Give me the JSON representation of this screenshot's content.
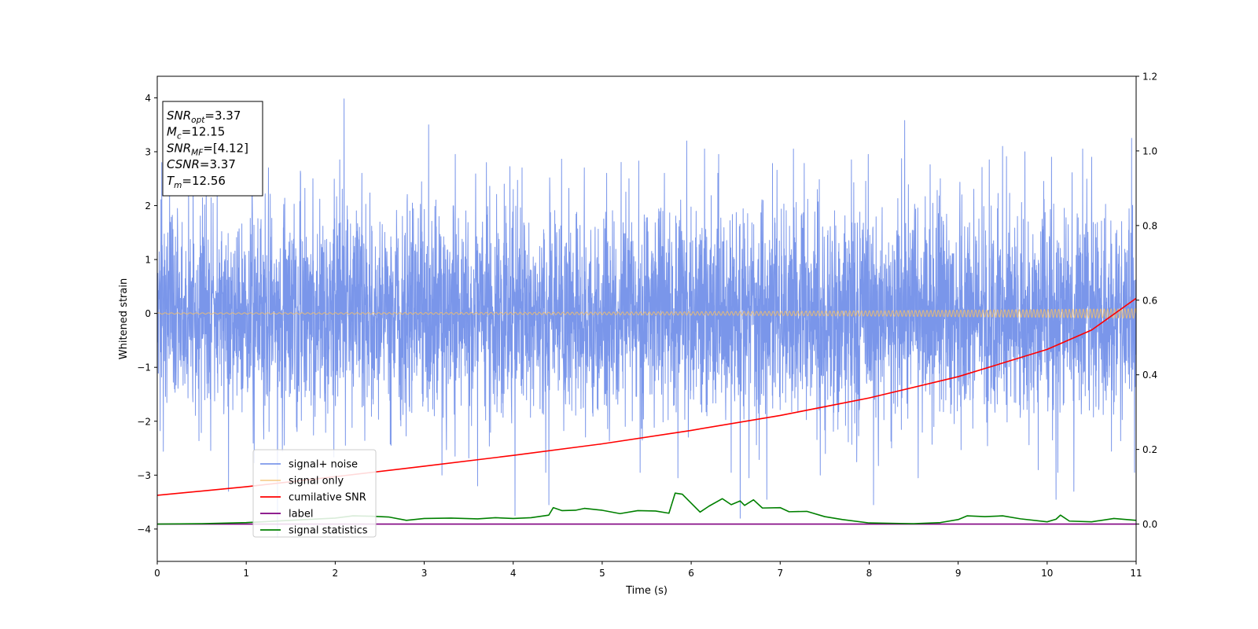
{
  "chart_data": {
    "type": "line",
    "xlabel": "Time (s)",
    "ylabel": "Whitened strain",
    "xlim": [
      0,
      11
    ],
    "ylim_left": [
      -4.6,
      4.4
    ],
    "ylim_right": [
      -0.1,
      1.2
    ],
    "x_ticks": [
      0,
      1,
      2,
      3,
      4,
      5,
      6,
      7,
      8,
      9,
      10,
      11
    ],
    "y_ticks_left": [
      -4,
      -3,
      -2,
      -1,
      0,
      1,
      2,
      3,
      4
    ],
    "y_ticks_right": [
      "0.0",
      "0.2",
      "0.4",
      "0.6",
      "0.8",
      "1.0",
      "1.2"
    ],
    "legend_position": "lower-left",
    "grid": false,
    "annotation": {
      "lines": [
        {
          "label": "SNR",
          "sub": "opt",
          "value": "=3.37"
        },
        {
          "label": "M",
          "sub": "c",
          "value": "=12.15"
        },
        {
          "label": "SNR",
          "sub": "MF",
          "value": "=[4.12]"
        },
        {
          "label": "CSNR",
          "sub": "",
          "value": "=3.37"
        },
        {
          "label": "T",
          "sub": "m",
          "value": "=12.56"
        }
      ]
    },
    "series": [
      {
        "name": "signal+ noise",
        "axis": "left",
        "color": "#4169e1",
        "kind": "noise",
        "std": 0.95,
        "peaks": [
          [
            0.05,
            2.8
          ],
          [
            0.55,
            2.5
          ],
          [
            0.8,
            -3.3
          ],
          [
            1.25,
            2.7
          ],
          [
            1.35,
            -4.15
          ],
          [
            1.75,
            2.5
          ],
          [
            2.05,
            2.85
          ],
          [
            2.1,
            3.98
          ],
          [
            2.3,
            2.6
          ],
          [
            3.05,
            3.5
          ],
          [
            3.2,
            -3.0
          ],
          [
            3.6,
            -3.2
          ],
          [
            3.7,
            2.8
          ],
          [
            3.9,
            2.4
          ],
          [
            4.0,
            2.3
          ],
          [
            4.02,
            -3.75
          ],
          [
            4.1,
            2.7
          ],
          [
            4.4,
            -3.55
          ],
          [
            4.8,
            2.7
          ],
          [
            5.05,
            2.6
          ],
          [
            5.3,
            2.5
          ],
          [
            5.45,
            -2.35
          ],
          [
            5.7,
            2.6
          ],
          [
            5.85,
            -3.05
          ],
          [
            5.95,
            3.2
          ],
          [
            6.15,
            3.05
          ],
          [
            6.3,
            2.6
          ],
          [
            6.45,
            -2.95
          ],
          [
            6.55,
            -3.8
          ],
          [
            6.65,
            -3.05
          ],
          [
            6.85,
            -3.45
          ],
          [
            7.15,
            3.05
          ],
          [
            7.45,
            -3.0
          ],
          [
            7.8,
            2.85
          ],
          [
            8.05,
            -3.55
          ],
          [
            8.4,
            3.58
          ],
          [
            8.55,
            -3.05
          ],
          [
            8.8,
            2.5
          ],
          [
            9.35,
            2.85
          ],
          [
            9.5,
            3.1
          ],
          [
            9.75,
            3.0
          ],
          [
            9.9,
            -2.9
          ],
          [
            10.05,
            2.9
          ],
          [
            10.1,
            -3.45
          ],
          [
            10.3,
            -3.3
          ],
          [
            10.4,
            3.05
          ],
          [
            10.5,
            2.9
          ],
          [
            10.95,
            3.25
          ]
        ]
      },
      {
        "name": "signal only",
        "axis": "left",
        "color": "#f4c06a",
        "kind": "chirp",
        "amp_start": 0.012,
        "amp_end": 0.09
      },
      {
        "name": "cumilative SNR",
        "axis": "right",
        "color": "#ff0000",
        "kind": "line",
        "x": [
          0,
          1,
          2,
          3,
          4,
          5,
          6,
          7,
          8,
          9,
          10,
          10.5,
          11
        ],
        "y": [
          0.077,
          0.1,
          0.127,
          0.155,
          0.184,
          0.215,
          0.251,
          0.291,
          0.338,
          0.395,
          0.468,
          0.52,
          0.605
        ]
      },
      {
        "name": "label",
        "axis": "right",
        "color": "#800080",
        "kind": "line",
        "x": [
          0,
          11
        ],
        "y": [
          0.0,
          0.0
        ]
      },
      {
        "name": "signal statistics",
        "axis": "right",
        "color": "#008000",
        "kind": "line",
        "x": [
          0,
          0.5,
          1.0,
          1.5,
          2.0,
          2.2,
          2.4,
          2.6,
          2.8,
          3.0,
          3.3,
          3.6,
          3.8,
          4.0,
          4.2,
          4.4,
          4.45,
          4.55,
          4.7,
          4.8,
          5.0,
          5.2,
          5.4,
          5.6,
          5.75,
          5.82,
          5.9,
          6.1,
          6.2,
          6.35,
          6.45,
          6.55,
          6.6,
          6.7,
          6.8,
          7.0,
          7.1,
          7.3,
          7.5,
          7.7,
          8.0,
          8.5,
          8.8,
          9.0,
          9.1,
          9.3,
          9.5,
          9.7,
          10.0,
          10.1,
          10.15,
          10.25,
          10.5,
          10.75,
          11.0
        ],
        "y": [
          0.0,
          0.001,
          0.004,
          0.01,
          0.016,
          0.022,
          0.021,
          0.019,
          0.01,
          0.015,
          0.016,
          0.014,
          0.017,
          0.015,
          0.017,
          0.024,
          0.044,
          0.036,
          0.037,
          0.042,
          0.037,
          0.028,
          0.036,
          0.035,
          0.029,
          0.083,
          0.08,
          0.032,
          0.048,
          0.068,
          0.052,
          0.062,
          0.05,
          0.065,
          0.043,
          0.044,
          0.033,
          0.034,
          0.02,
          0.012,
          0.003,
          0.001,
          0.004,
          0.012,
          0.022,
          0.02,
          0.022,
          0.014,
          0.006,
          0.013,
          0.024,
          0.008,
          0.006,
          0.015,
          0.01
        ]
      }
    ]
  }
}
